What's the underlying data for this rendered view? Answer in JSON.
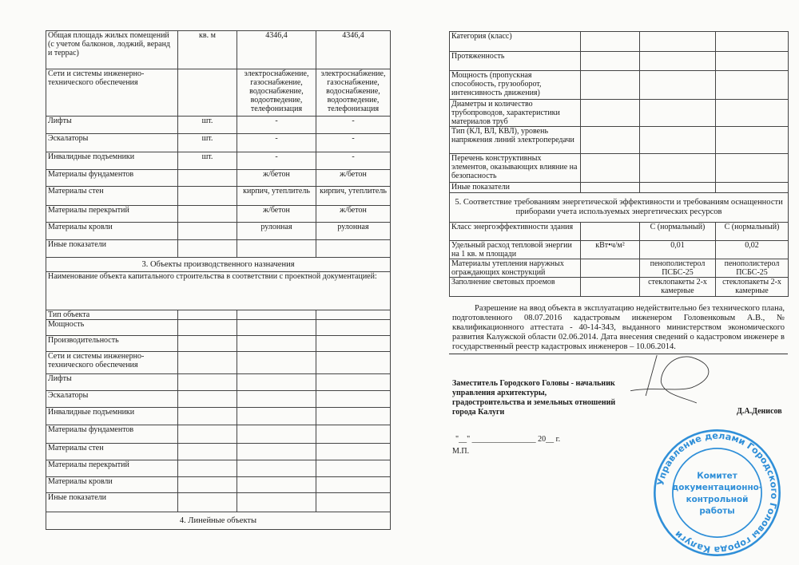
{
  "left_table": {
    "rows_top": [
      {
        "label": "Общая площадь жилых помещений (с учетом балконов, лоджий, веранд и террас)",
        "unit": "кв. м",
        "planned": "4346,4",
        "actual": "4346,4"
      },
      {
        "label": "Сети и системы инженерно-технического обеспечения",
        "unit": "",
        "planned": "электроснабжение, газоснабжение, водоснабжение, водоотведение, телефонизация",
        "actual": "электроснабжение, газоснабжение, водоснабжение, водоотведение, телефонизация"
      },
      {
        "label": "Лифты",
        "unit": "шт.",
        "planned": "-",
        "actual": "-"
      },
      {
        "label": "Эскалаторы",
        "unit": "шт.",
        "planned": "-",
        "actual": "-"
      },
      {
        "label": "Инвалидные подъемники",
        "unit": "шт.",
        "planned": "-",
        "actual": "-"
      },
      {
        "label": "Материалы фундаментов",
        "unit": "",
        "planned": "ж/бетон",
        "actual": "ж/бетон"
      },
      {
        "label": "Материалы стен",
        "unit": "",
        "planned": "кирпич, утеплитель",
        "actual": "кирпич, утеплитель"
      },
      {
        "label": "Материалы перекрытий",
        "unit": "",
        "planned": "ж/бетон",
        "actual": "ж/бетон"
      },
      {
        "label": "Материалы кровли",
        "unit": "",
        "planned": "рулонная",
        "actual": "рулонная"
      },
      {
        "label": "Иные показатели",
        "unit": "",
        "planned": "",
        "actual": ""
      }
    ],
    "section3_title": "3. Объекты производственного назначения",
    "section3_name_label": "Наименование объекта капитального строительства в соответствии с проектной документацией:",
    "section3_rows": [
      "Тип объекта",
      "Мощность",
      "Производительность",
      "Сети и системы инженерно-технического обеспечения",
      "Лифты",
      "Эскалаторы",
      "Инвалидные подъемники",
      "Материалы фундаментов",
      "Материалы стен",
      "Материалы перекрытий",
      "Материалы кровли",
      "Иные показатели"
    ],
    "section4_title": "4. Линейные объекты"
  },
  "right_table": {
    "section4_rows": [
      "Категория (класс)",
      "Протяженность",
      "Мощность (пропускная способность, грузооборот, интенсивность движения)",
      "Диаметры и количество трубопроводов, характеристики материалов труб",
      "Тип (КЛ, ВЛ, КВЛ), уровень напряжения линий электропередачи",
      "Перечень конструктивных элементов, оказывающих влияние на безопасность",
      "Иные показатели"
    ],
    "section5_title": "5. Соответствие требованиям энергетической эффективности и требованиям оснащенности приборами учета используемых энергетических ресурсов",
    "section5_rows": [
      {
        "label": "Класс энергоэффективности здания",
        "unit": "",
        "planned": "С (нормальный)",
        "actual": "С (нормальный)"
      },
      {
        "label": "Удельный расход тепловой энергии на 1 кв. м площади",
        "unit": "кВт•ч/м²",
        "planned": "0,01",
        "actual": "0,02"
      },
      {
        "label": "Материалы утепления наружных ограждающих конструкций",
        "unit": "",
        "planned": "пенополистерол ПСБС-25",
        "actual": "пенополистерол ПСБС-25"
      },
      {
        "label": "Заполнение световых проемов",
        "unit": "",
        "planned": "стеклопакеты 2-х камерные",
        "actual": "стеклопакеты 2-х камерные"
      }
    ]
  },
  "note": "Разрешение на ввод объекта в эксплуатацию недействительно без технического плана, подготовленного 08.07.2016 кадастровым инженером Головенковым А.В., № квалификационного аттестата - 40-14-343, выданного министерством экономического развития Калужской области 02.06.2014. Дата внесения сведений о кадастровом инженере в государственный реестр кадастровых инженеров – 10.06.2014.",
  "signer": {
    "title": "Заместитель Городского Головы - начальник управления архитектуры, градостроительства и земельных отношений города Калуги",
    "name": "Д.А.Денисов",
    "date_line": "\"__\" ________________ 20__ г.",
    "mp": "М.П."
  },
  "stamp": {
    "outer_text": "Управление делами Городского Головы города Калуги",
    "center_lines": [
      "Комитет",
      "документационно-",
      "контрольной",
      "работы"
    ],
    "color": "#2f8fd8"
  }
}
